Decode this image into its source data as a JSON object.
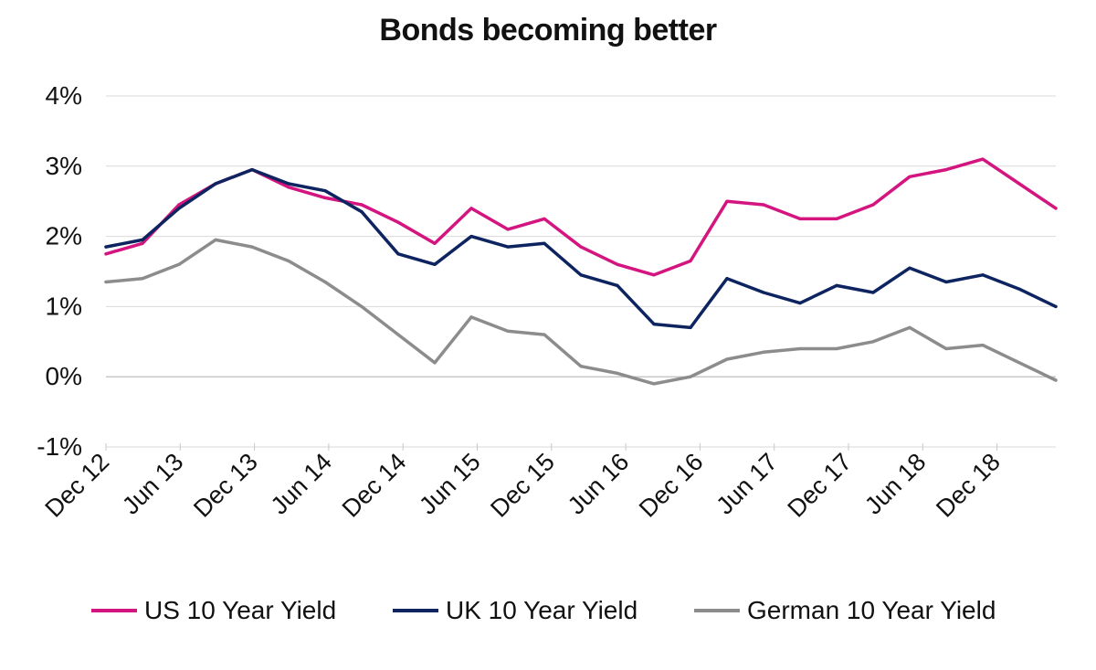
{
  "chart_data": {
    "type": "line",
    "title": "Bonds becoming better",
    "xlabel": "",
    "ylabel": "",
    "ylim": [
      -1,
      4
    ],
    "grid": true,
    "legend_position": "bottom",
    "y_ticks": [
      {
        "value": 4,
        "label": "4%"
      },
      {
        "value": 3,
        "label": "3%"
      },
      {
        "value": 2,
        "label": "2%"
      },
      {
        "value": 1,
        "label": "1%"
      },
      {
        "value": 0,
        "label": "0%"
      },
      {
        "value": -1,
        "label": "-1%"
      }
    ],
    "x_ticks": [
      "Dec 12",
      "Jun 13",
      "Dec 13",
      "Jun 14",
      "Dec 14",
      "Jun 15",
      "Dec 15",
      "Jun 16",
      "Dec 16",
      "Jun 17",
      "Dec 17",
      "Jun 18",
      "Dec 18"
    ],
    "x": [
      "Dec 12",
      "Mar 13",
      "Jun 13",
      "Sep 13",
      "Dec 13",
      "Mar 14",
      "Jun 14",
      "Sep 14",
      "Dec 14",
      "Mar 15",
      "Jun 15",
      "Sep 15",
      "Dec 15",
      "Mar 16",
      "Jun 16",
      "Jul 16",
      "Sep 16",
      "Dec 16",
      "Mar 17",
      "Jun 17",
      "Sep 17",
      "Dec 17",
      "Mar 18",
      "Jun 18",
      "Sep 18",
      "Dec 18",
      "Mar 19"
    ],
    "series": [
      {
        "name": "US 10 Year Yield",
        "color": "#d4157f",
        "values": [
          1.75,
          1.9,
          2.45,
          2.75,
          2.95,
          2.7,
          2.55,
          2.45,
          2.2,
          1.9,
          2.4,
          2.1,
          2.25,
          1.85,
          1.6,
          1.45,
          1.65,
          2.5,
          2.45,
          2.25,
          2.25,
          2.45,
          2.85,
          2.95,
          3.1,
          2.75,
          2.4
        ]
      },
      {
        "name": "UK 10 Year Yield",
        "color": "#0d2461",
        "values": [
          1.85,
          1.95,
          2.4,
          2.75,
          2.95,
          2.75,
          2.65,
          2.35,
          1.75,
          1.6,
          2.0,
          1.85,
          1.9,
          1.45,
          1.3,
          0.75,
          0.7,
          1.4,
          1.2,
          1.05,
          1.3,
          1.2,
          1.55,
          1.35,
          1.45,
          1.25,
          1.0
        ]
      },
      {
        "name": "German 10 Year Yield",
        "color": "#8c8c8c",
        "values": [
          1.35,
          1.4,
          1.6,
          1.95,
          1.85,
          1.65,
          1.35,
          1.0,
          0.6,
          0.2,
          0.85,
          0.65,
          0.6,
          0.15,
          0.05,
          -0.1,
          0.0,
          0.25,
          0.35,
          0.4,
          0.4,
          0.5,
          0.7,
          0.4,
          0.45,
          0.2,
          -0.05
        ]
      }
    ]
  }
}
